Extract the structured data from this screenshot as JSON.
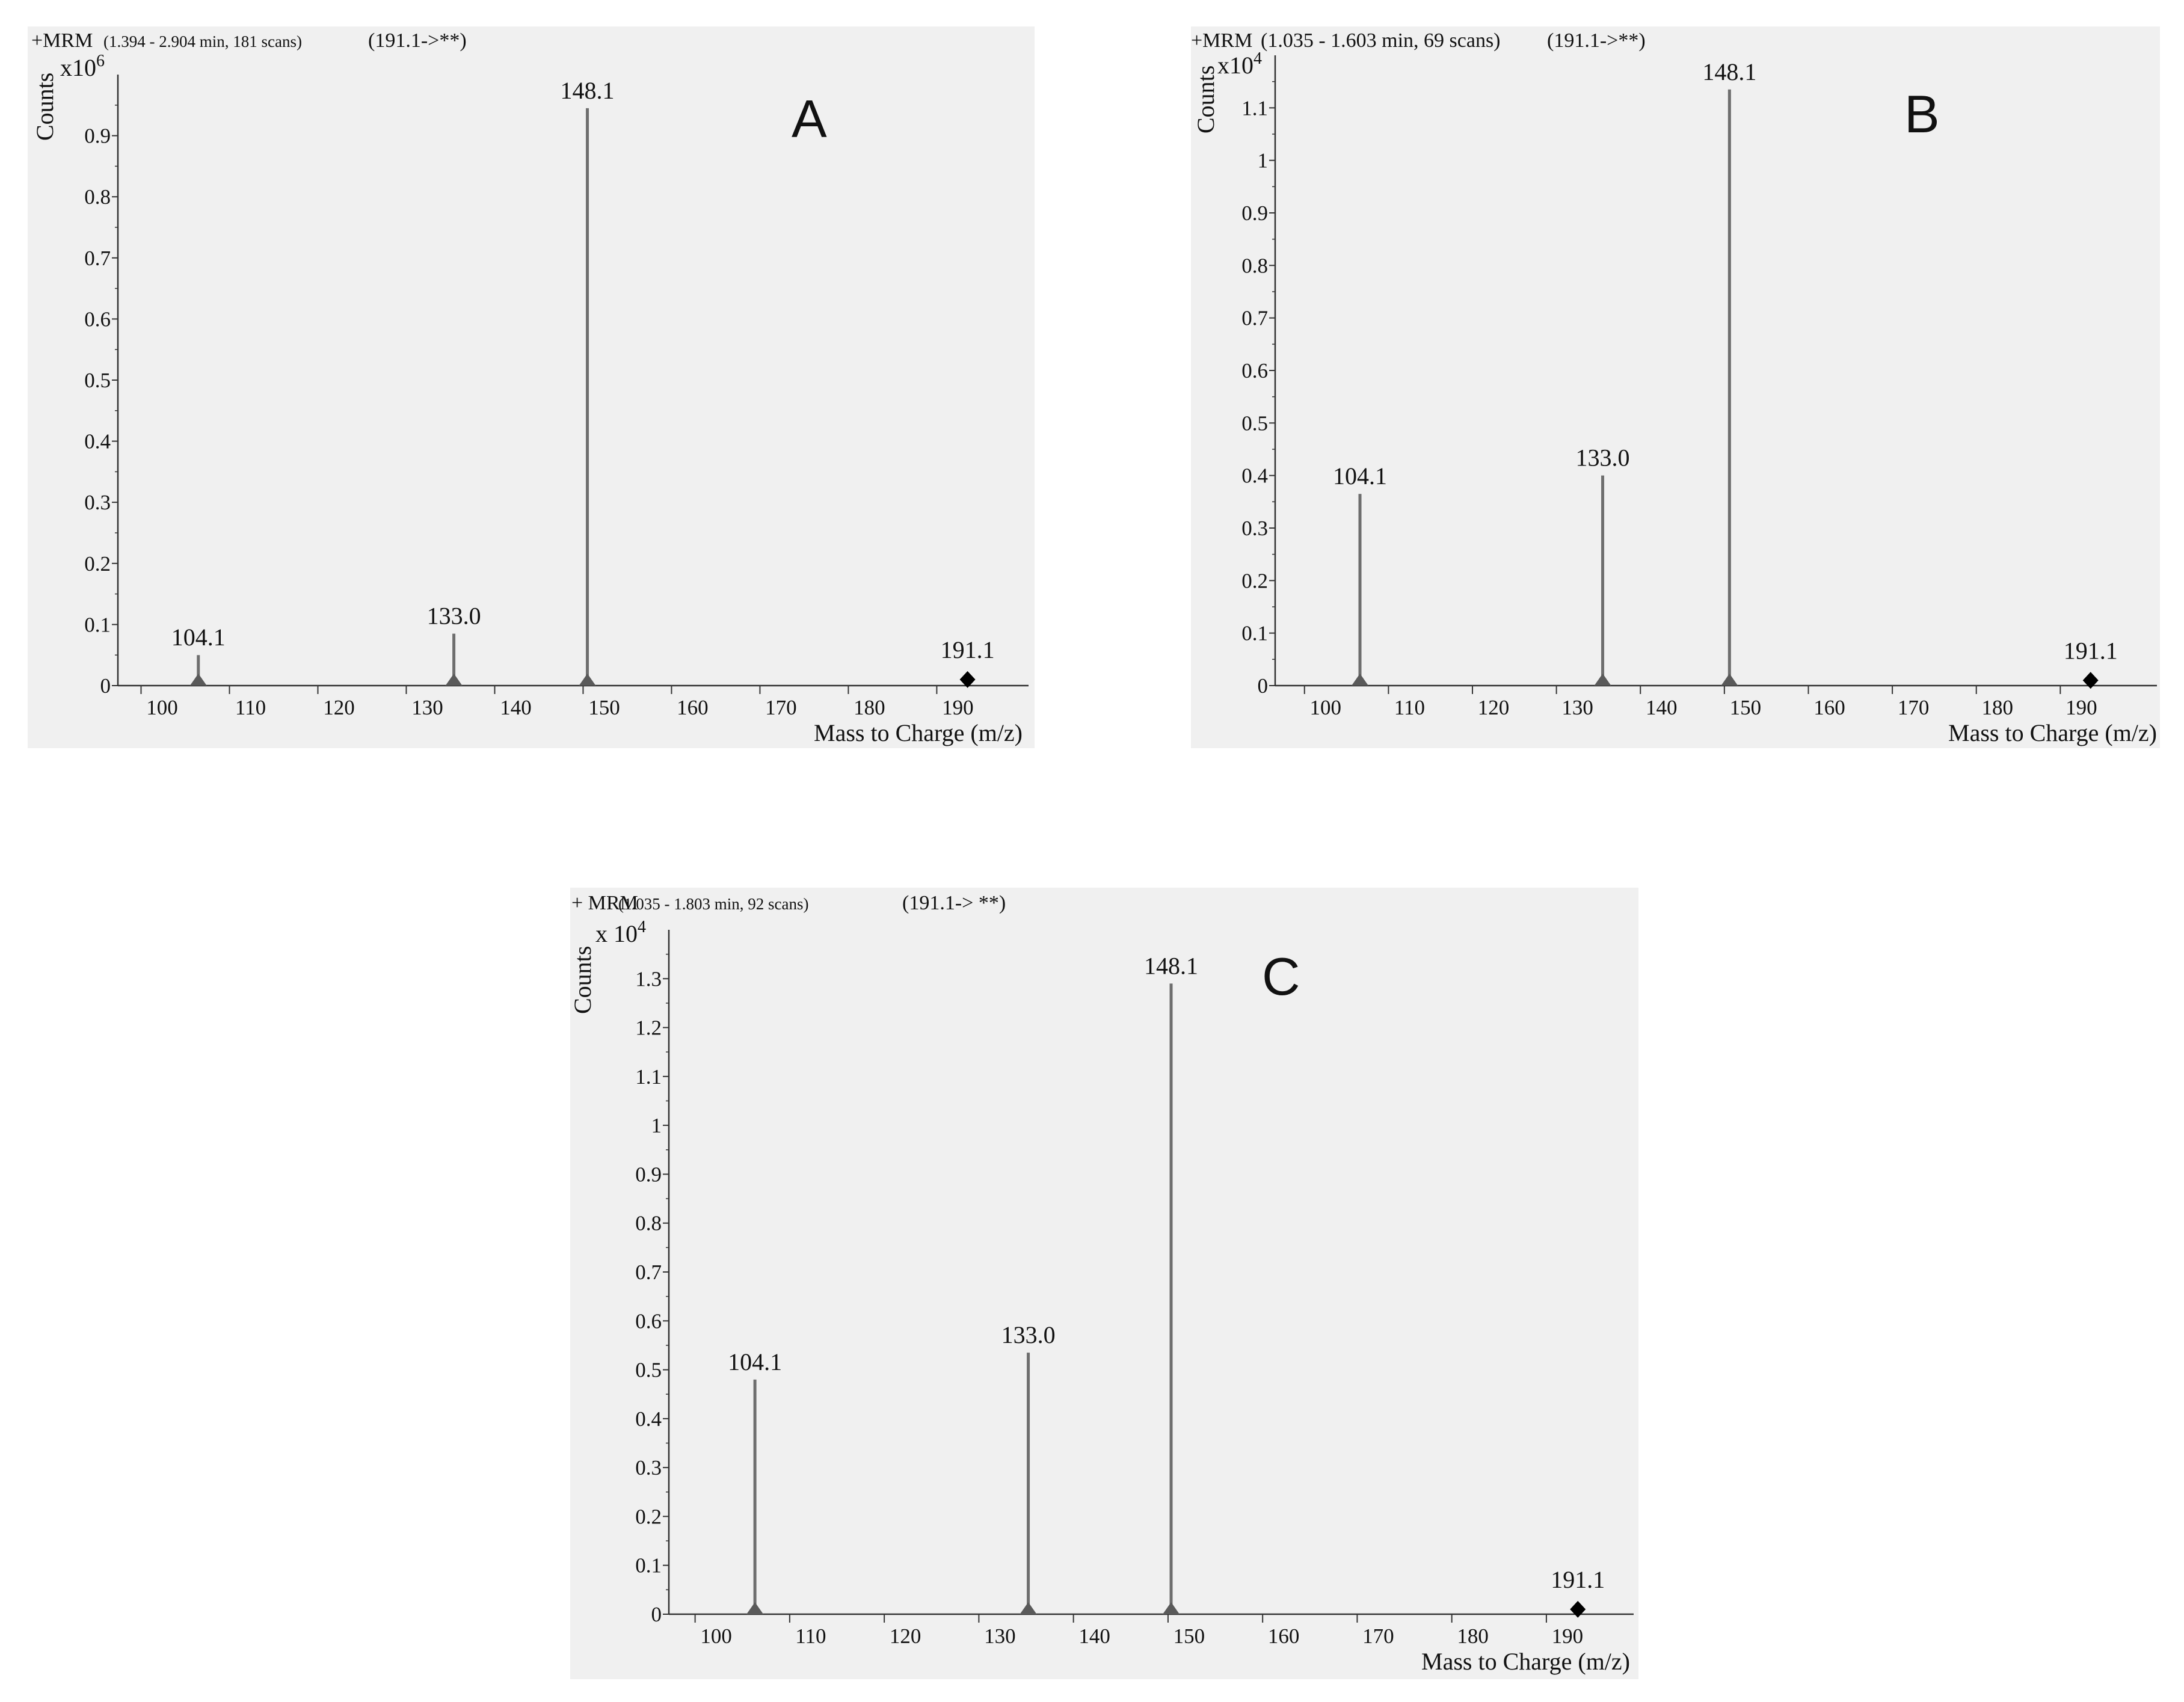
{
  "chart_data": [
    {
      "type": "bar",
      "panel_label": "A",
      "header": {
        "mode": "+MRM",
        "range": "(1.394 - 2.904 min, 181 scans)",
        "transition": "(191.1->**)"
      },
      "ylabel": "Counts",
      "multiplier": "x10",
      "multiplier_exp": "6",
      "xlabel": "Mass to Charge (m/z)",
      "xlim": [
        95,
        198
      ],
      "ylim": [
        0,
        1.0
      ],
      "x_ticks": [
        100,
        110,
        120,
        130,
        140,
        150,
        160,
        170,
        180,
        190
      ],
      "y_ticks": [
        "0",
        "0.1",
        "0.2",
        "0.3",
        "0.4",
        "0.5",
        "0.6",
        "0.7",
        "0.8",
        "0.9"
      ],
      "peaks": [
        {
          "label": "104.1",
          "x": 104.1,
          "y": 0.05
        },
        {
          "label": "133.0",
          "x": 133.0,
          "y": 0.085
        },
        {
          "label": "148.1",
          "x": 148.1,
          "y": 0.945
        }
      ],
      "precursor": {
        "label": "191.1",
        "x": 191.1,
        "y": 0.01
      },
      "colors": {
        "stick": "#6e6e6e",
        "marker": "#5a5a5a",
        "precursor": "#000000",
        "background": "#f0f0f0"
      }
    },
    {
      "type": "bar",
      "panel_label": "B",
      "header": {
        "mode": "+MRM",
        "range": "(1.035 - 1.603 min, 69 scans)",
        "transition": "(191.1->**)"
      },
      "ylabel": "Counts",
      "multiplier": "x10",
      "multiplier_exp": "4",
      "xlabel": "Mass to Charge (m/z)",
      "xlim": [
        94,
        199
      ],
      "ylim": [
        0,
        1.2
      ],
      "x_ticks": [
        100,
        110,
        120,
        130,
        140,
        150,
        160,
        170,
        180,
        190
      ],
      "y_ticks": [
        "0",
        "0.1",
        "0.2",
        "0.3",
        "0.4",
        "0.5",
        "0.6",
        "0.7",
        "0.8",
        "0.9",
        "1",
        "1.1"
      ],
      "peaks": [
        {
          "label": "104.1",
          "x": 104.1,
          "y": 0.365
        },
        {
          "label": "133.0",
          "x": 133.0,
          "y": 0.4
        },
        {
          "label": "148.1",
          "x": 148.1,
          "y": 1.135
        }
      ],
      "precursor": {
        "label": "191.1",
        "x": 191.1,
        "y": 0.01
      },
      "colors": {
        "stick": "#6e6e6e",
        "marker": "#5a5a5a",
        "precursor": "#000000",
        "background": "#f0f0f0"
      }
    },
    {
      "type": "bar",
      "panel_label": "C",
      "header": {
        "mode": "+ MRM",
        "range": "(1.035 - 1.803 min, 92 scans)",
        "transition": "(191.1-> **)"
      },
      "ylabel": "Counts",
      "multiplier": "x 10",
      "multiplier_exp": "4",
      "xlabel": "Mass to Charge (m/z)",
      "xlim": [
        95,
        197
      ],
      "ylim": [
        0,
        1.4
      ],
      "x_ticks": [
        100,
        110,
        120,
        130,
        140,
        150,
        160,
        170,
        180,
        190
      ],
      "y_ticks": [
        "0",
        "0.1",
        "0.2",
        "0.3",
        "0.4",
        "0.5",
        "0.6",
        "0.7",
        "0.8",
        "0.9",
        "1",
        "1.1",
        "1.2",
        "1.3"
      ],
      "peaks": [
        {
          "label": "104.1",
          "x": 104.1,
          "y": 0.48
        },
        {
          "label": "133.0",
          "x": 133.0,
          "y": 0.535
        },
        {
          "label": "148.1",
          "x": 148.1,
          "y": 1.29
        }
      ],
      "precursor": {
        "label": "191.1",
        "x": 191.1,
        "y": 0.01
      },
      "colors": {
        "stick": "#6e6e6e",
        "marker": "#5a5a5a",
        "precursor": "#000000",
        "background": "#f0f0f0"
      }
    }
  ]
}
